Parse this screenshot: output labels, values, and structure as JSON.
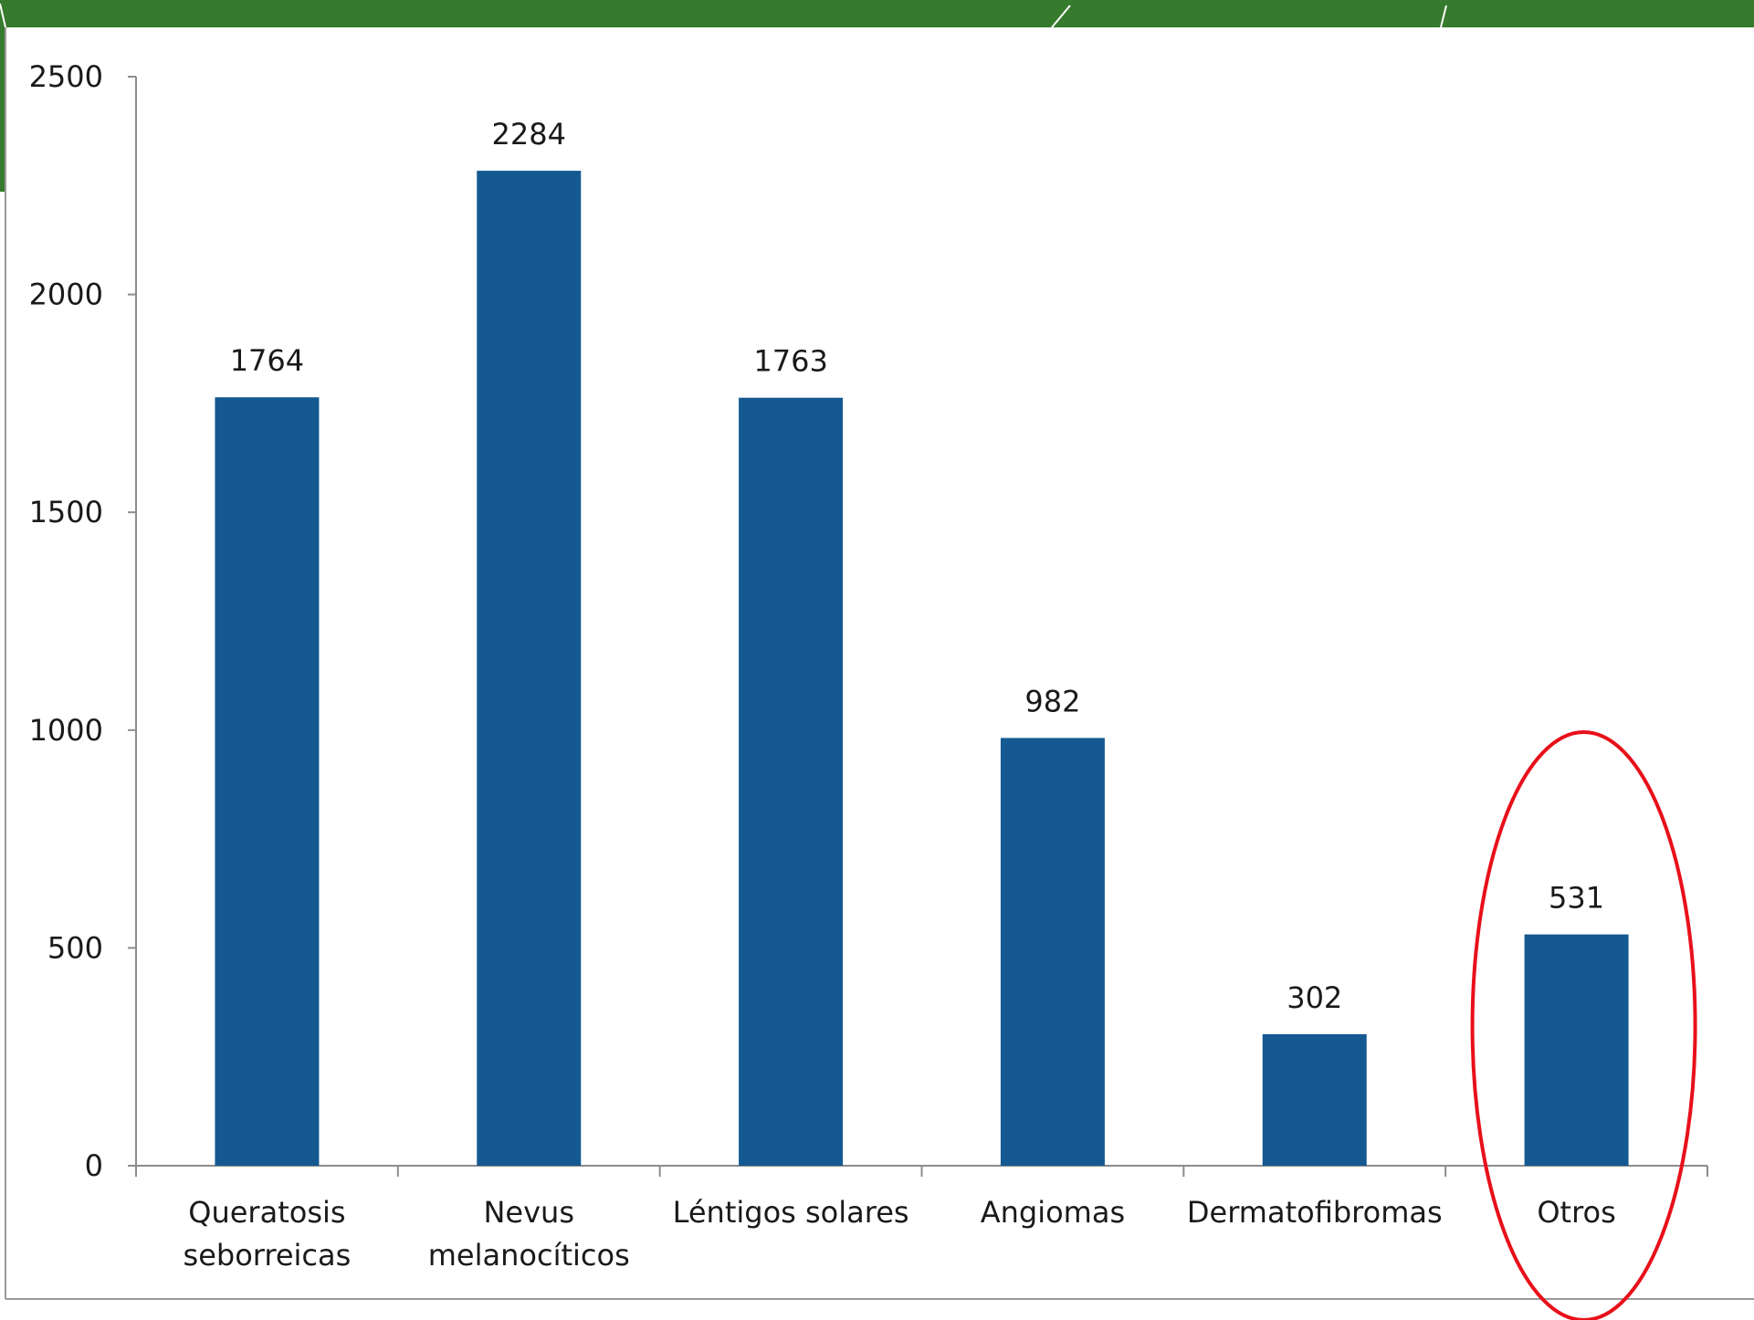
{
  "colors": {
    "banner": "#367a2d",
    "bar": "#155992",
    "axis": "#8c8c8c",
    "highlight": "#e8101a",
    "frame": "#9a9a9a"
  },
  "chart_data": {
    "type": "bar",
    "categories": [
      [
        "Queratosis",
        "seborreicas"
      ],
      [
        "Nevus",
        "melanocíticos"
      ],
      [
        "Léntigos solares"
      ],
      [
        "Angiomas"
      ],
      [
        "Dermatofibromas"
      ],
      [
        "Otros"
      ]
    ],
    "values": [
      1764,
      2284,
      1763,
      982,
      302,
      531
    ],
    "data_labels": [
      "1764",
      "2284",
      "1763",
      "982",
      "302",
      "531"
    ],
    "ylim": [
      0,
      2500
    ],
    "yticks": [
      0,
      500,
      1000,
      1500,
      2000,
      2500
    ],
    "grid": false,
    "legend": "none",
    "highlighted_category": "Otros"
  }
}
